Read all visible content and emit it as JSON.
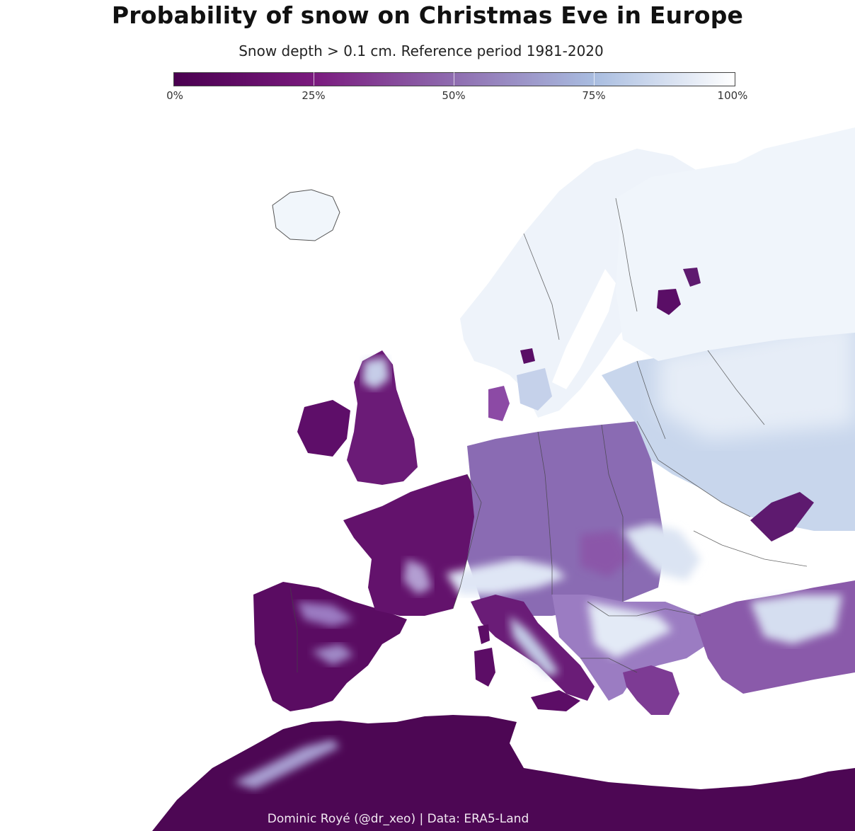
{
  "title": "Probability of snow on Christmas Eve in Europe",
  "subtitle": "Snow depth > 0.1 cm. Reference period 1981-2020",
  "legend": {
    "ticks": [
      "0%",
      "25%",
      "50%",
      "75%",
      "100%"
    ],
    "tick_values": [
      0,
      25,
      50,
      75,
      100
    ],
    "colors": [
      "#4a0050",
      "#7a1a7e",
      "#8f6db0",
      "#a9bde0",
      "#ffffff"
    ]
  },
  "credit": "Dominic Royé (@dr_xeo) | Data: ERA5-Land",
  "colors": {
    "low": "#4a0050",
    "mid_low": "#7d2b86",
    "mid": "#8f7bbd",
    "mid_high": "#b6c8e3",
    "high": "#f4f8fc",
    "border": "#444444"
  }
}
